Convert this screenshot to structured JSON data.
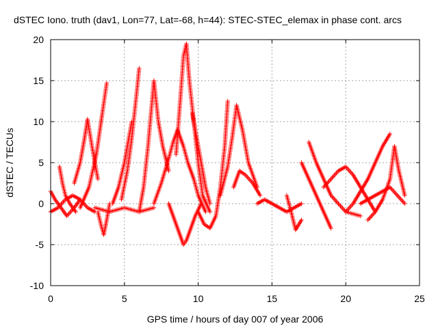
{
  "chart_data": {
    "type": "scatter",
    "title": "dSTEC Iono. truth (dav1, Lon=77, Lat=-68, h=44): STEC-STEC_elemax in phase cont. arcs",
    "xlabel": "GPS time / hours of day 007 of year 2006",
    "ylabel": "dSTEC  / TECUs",
    "xlim": [
      0,
      25
    ],
    "ylim": [
      -10,
      20
    ],
    "xticks": [
      "0",
      "5",
      "10",
      "15",
      "20",
      "25"
    ],
    "yticks": [
      "-10",
      "-5",
      "0",
      "5",
      "10",
      "15",
      "20"
    ],
    "grid": true,
    "marker": "+",
    "color": "#ff0000",
    "arcs": [
      {
        "x": [
          0.0,
          0.3,
          0.7,
          1.1,
          1.6,
          2.0
        ],
        "y": [
          1.5,
          0.5,
          -0.5,
          -1.5,
          -0.5,
          0.5
        ]
      },
      {
        "x": [
          0.0,
          0.5,
          1.0,
          1.5,
          2.0,
          2.5,
          3.0
        ],
        "y": [
          -1.0,
          -0.5,
          0.5,
          1.0,
          0.5,
          -0.5,
          -1.0
        ]
      },
      {
        "x": [
          0.6,
          0.8,
          1.0,
          1.3,
          1.7
        ],
        "y": [
          4.5,
          2.5,
          1.0,
          0.0,
          -1.0
        ]
      },
      {
        "x": [
          1.6,
          2.0,
          2.3,
          2.5,
          2.8,
          3.2
        ],
        "y": [
          2.5,
          5.0,
          8.0,
          10.3,
          7.0,
          3.0
        ]
      },
      {
        "x": [
          2.0,
          2.6,
          3.1,
          3.5,
          3.8
        ],
        "y": [
          -0.5,
          2.0,
          6.0,
          11.0,
          14.7
        ]
      },
      {
        "x": [
          3.2,
          3.4,
          3.6,
          3.8,
          4.0
        ],
        "y": [
          -1.0,
          -2.5,
          -3.8,
          -2.0,
          0.0
        ]
      },
      {
        "x": [
          3.0,
          4.0,
          5.0,
          6.0,
          7.0
        ],
        "y": [
          -0.5,
          -1.0,
          -0.5,
          -1.0,
          -0.5
        ]
      },
      {
        "x": [
          4.2,
          4.6,
          5.0,
          5.3,
          5.5
        ],
        "y": [
          0.0,
          2.0,
          5.0,
          8.0,
          10.0
        ]
      },
      {
        "x": [
          4.8,
          5.2,
          5.5,
          5.8,
          6.0
        ],
        "y": [
          0.5,
          4.0,
          8.0,
          13.0,
          16.5
        ]
      },
      {
        "x": [
          6.0,
          6.3,
          6.6,
          6.8,
          7.0,
          7.3,
          7.6,
          8.0
        ],
        "y": [
          -1.0,
          2.0,
          7.0,
          11.0,
          15.0,
          10.0,
          7.0,
          4.0
        ]
      },
      {
        "x": [
          7.0,
          7.5,
          8.0,
          8.3,
          8.6,
          9.0,
          9.3,
          9.7,
          10.0,
          10.5
        ],
        "y": [
          0.0,
          2.5,
          5.5,
          7.5,
          9.0,
          7.0,
          5.0,
          3.0,
          1.0,
          -1.0
        ]
      },
      {
        "x": [
          8.0,
          8.4,
          8.8,
          9.0,
          9.2,
          9.5,
          9.8,
          10.2
        ],
        "y": [
          0.0,
          -2.0,
          -4.0,
          -5.0,
          -4.5,
          -3.0,
          -1.5,
          0.0
        ]
      },
      {
        "x": [
          8.5,
          8.8,
          9.0,
          9.2,
          9.4,
          9.7,
          10.0,
          10.3,
          10.8
        ],
        "y": [
          6.0,
          13.0,
          18.0,
          19.5,
          15.0,
          10.0,
          5.0,
          1.0,
          -1.0
        ]
      },
      {
        "x": [
          9.6,
          9.9,
          10.2,
          10.5,
          10.8
        ],
        "y": [
          11.0,
          8.0,
          5.0,
          2.0,
          0.0
        ]
      },
      {
        "x": [
          10.0,
          10.4,
          10.8,
          11.2,
          11.5,
          11.8,
          12.0
        ],
        "y": [
          -1.0,
          -2.5,
          -3.0,
          -1.5,
          2.0,
          7.0,
          12.5
        ]
      },
      {
        "x": [
          11.5,
          12.0,
          12.3,
          12.6,
          13.0,
          13.4,
          14.0
        ],
        "y": [
          1.0,
          4.5,
          8.0,
          12.0,
          9.0,
          5.0,
          2.0
        ]
      },
      {
        "x": [
          12.4,
          12.8,
          13.2,
          13.7,
          14.2
        ],
        "y": [
          2.0,
          4.0,
          3.5,
          2.5,
          1.0
        ]
      },
      {
        "x": [
          14.0,
          14.5,
          15.0,
          15.5,
          16.0,
          16.5,
          17.0
        ],
        "y": [
          0.0,
          0.5,
          0.0,
          -0.5,
          -1.0,
          -0.5,
          0.0
        ]
      },
      {
        "x": [
          16.0,
          16.3,
          16.6,
          17.0
        ],
        "y": [
          1.0,
          -1.0,
          -3.2,
          -2.0
        ]
      },
      {
        "x": [
          17.0,
          17.5,
          18.0,
          18.5,
          19.0
        ],
        "y": [
          5.0,
          3.0,
          1.0,
          -1.0,
          -3.0
        ]
      },
      {
        "x": [
          17.5,
          18.0,
          18.5,
          19.0,
          19.5,
          20.0,
          21.0
        ],
        "y": [
          7.5,
          5.0,
          3.0,
          1.0,
          0.0,
          -1.0,
          -1.5
        ]
      },
      {
        "x": [
          18.5,
          19.0,
          19.5,
          20.0,
          20.5,
          21.0,
          21.5,
          22.0
        ],
        "y": [
          2.0,
          3.0,
          4.0,
          4.5,
          3.5,
          2.0,
          0.5,
          -1.0
        ]
      },
      {
        "x": [
          20.0,
          20.5,
          21.0,
          21.5,
          22.0,
          22.5,
          23.0
        ],
        "y": [
          -1.0,
          0.0,
          1.5,
          3.0,
          5.0,
          7.0,
          8.5
        ]
      },
      {
        "x": [
          21.5,
          22.0,
          22.5,
          23.0,
          23.3,
          23.6,
          24.0
        ],
        "y": [
          -2.0,
          -1.0,
          0.5,
          3.0,
          7.0,
          4.0,
          1.0
        ]
      },
      {
        "x": [
          21.0,
          21.5,
          22.0,
          22.5,
          23.0,
          23.5,
          24.0
        ],
        "y": [
          0.0,
          0.5,
          1.0,
          1.5,
          2.0,
          1.0,
          0.0
        ]
      }
    ]
  }
}
